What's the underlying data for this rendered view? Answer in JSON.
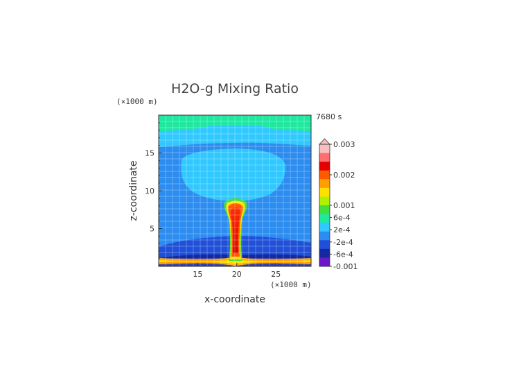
{
  "chart_data": {
    "type": "heatmap",
    "title": "H2O-g Mixing Ratio",
    "xlabel": "x-coordinate",
    "ylabel": "z-coordinate",
    "x_unit": "(×1000 m)",
    "y_unit": "(×1000 m)",
    "time_label": "7680 s",
    "xlim": [
      10,
      29.5
    ],
    "ylim": [
      0,
      20
    ],
    "x_ticks": [
      15,
      20,
      25
    ],
    "y_ticks": [
      5,
      10,
      15
    ],
    "grid": true,
    "legend": "right",
    "colorbar": {
      "range": [
        -0.001,
        0.003
      ],
      "extend": "max",
      "labels": [
        "0.003",
        "0.002",
        "0.001",
        "6e-4",
        "2e-4",
        "-2e-4",
        "-6e-4",
        "-0.001"
      ],
      "colors": [
        "#f7c0c0",
        "#ff6f6f",
        "#e40000",
        "#ff5a00",
        "#ffa000",
        "#ffe000",
        "#b0f000",
        "#40e040",
        "#20e8a0",
        "#30c8ff",
        "#2c8cf0",
        "#2050d8",
        "#1428a0",
        "#6a18c8"
      ]
    },
    "field_levels": {
      "upper_band_z": [
        15,
        19
      ],
      "lower_band_z": [
        1,
        3.5
      ],
      "plume_x": 20,
      "plume_top_z": 8.5,
      "surface_layer_z": [
        0,
        1
      ]
    }
  }
}
